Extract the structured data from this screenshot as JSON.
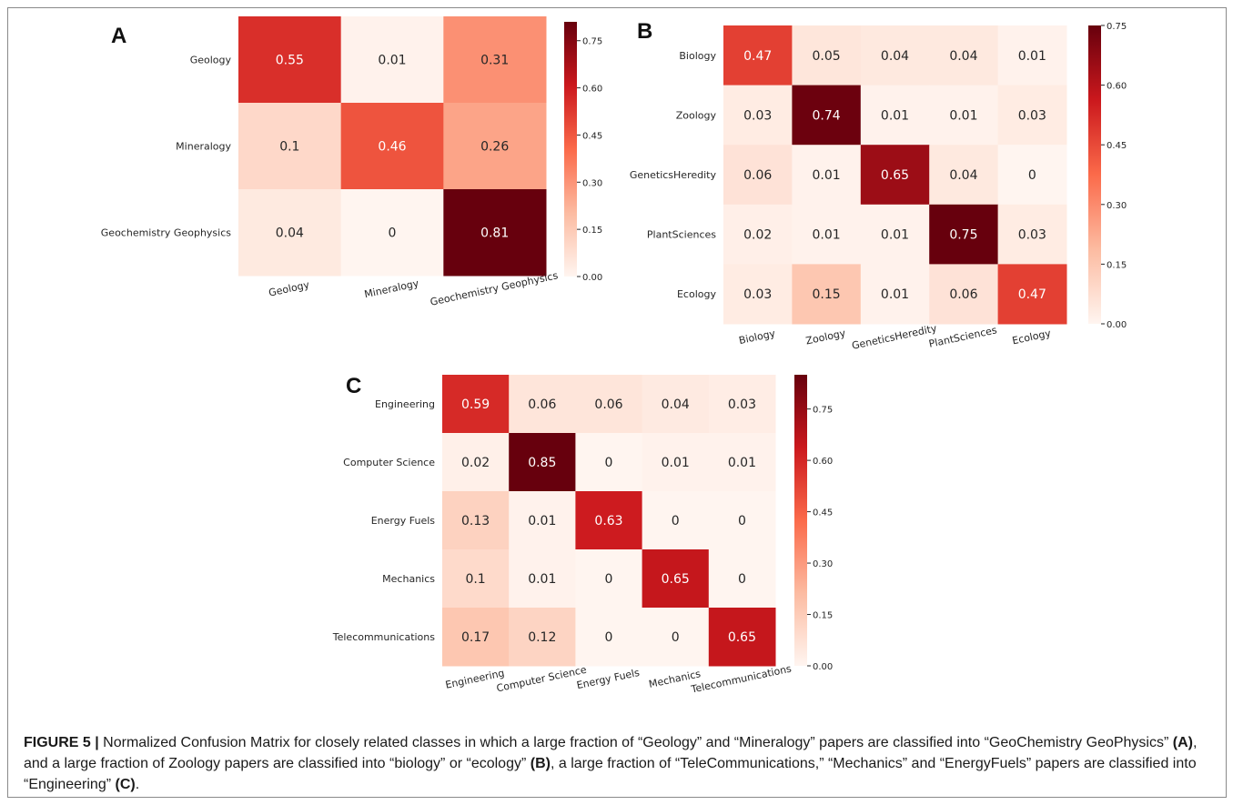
{
  "chart_data": [
    {
      "type": "heatmap",
      "panel_label": "A",
      "row_labels": [
        "Geology",
        "Mineralogy",
        "Geochemistry Geophysics"
      ],
      "col_labels": [
        "Geology",
        "Mineralogy",
        "Geochemistry Geophysics"
      ],
      "values": [
        [
          0.55,
          0.01,
          0.31
        ],
        [
          0.1,
          0.46,
          0.26
        ],
        [
          0.04,
          0,
          0.81
        ]
      ],
      "value_labels": [
        [
          "0.55",
          "0.01",
          "0.31"
        ],
        [
          "0.1",
          "0.46",
          "0.26"
        ],
        [
          "0.04",
          "0",
          "0.81"
        ]
      ],
      "colorbar": {
        "min": 0.0,
        "max": 0.81,
        "ticks": [
          "0.00",
          "0.15",
          "0.30",
          "0.45",
          "0.60",
          "0.75"
        ]
      },
      "colormap": [
        "#fff5f0",
        "#fcbba1",
        "#fb6a4a",
        "#cb181d",
        "#67000d"
      ]
    },
    {
      "type": "heatmap",
      "panel_label": "B",
      "row_labels": [
        "Biology",
        "Zoology",
        "GeneticsHeredity",
        "PlantSciences",
        "Ecology"
      ],
      "col_labels": [
        "Biology",
        "Zoology",
        "GeneticsHeredity",
        "PlantSciences",
        "Ecology"
      ],
      "values": [
        [
          0.47,
          0.05,
          0.04,
          0.04,
          0.01
        ],
        [
          0.03,
          0.74,
          0.01,
          0.01,
          0.03
        ],
        [
          0.06,
          0.01,
          0.65,
          0.04,
          0
        ],
        [
          0.02,
          0.01,
          0.01,
          0.75,
          0.03
        ],
        [
          0.03,
          0.15,
          0.01,
          0.06,
          0.47
        ]
      ],
      "value_labels": [
        [
          "0.47",
          "0.05",
          "0.04",
          "0.04",
          "0.01"
        ],
        [
          "0.03",
          "0.74",
          "0.01",
          "0.01",
          "0.03"
        ],
        [
          "0.06",
          "0.01",
          "0.65",
          "0.04",
          "0"
        ],
        [
          "0.02",
          "0.01",
          "0.01",
          "0.75",
          "0.03"
        ],
        [
          "0.03",
          "0.15",
          "0.01",
          "0.06",
          "0.47"
        ]
      ],
      "colorbar": {
        "min": 0.0,
        "max": 0.75,
        "ticks": [
          "0.00",
          "0.15",
          "0.30",
          "0.45",
          "0.60",
          "0.75"
        ]
      },
      "colormap": [
        "#fff5f0",
        "#fcbba1",
        "#fb6a4a",
        "#cb181d",
        "#67000d"
      ]
    },
    {
      "type": "heatmap",
      "panel_label": "C",
      "row_labels": [
        "Engineering",
        "Computer Science",
        "Energy Fuels",
        "Mechanics",
        "Telecommunications"
      ],
      "col_labels": [
        "Engineering",
        "Computer Science",
        "Energy Fuels",
        "Mechanics",
        "Telecommunications"
      ],
      "values": [
        [
          0.59,
          0.06,
          0.06,
          0.04,
          0.03
        ],
        [
          0.02,
          0.85,
          0,
          0.01,
          0.01
        ],
        [
          0.13,
          0.01,
          0.63,
          0,
          0
        ],
        [
          0.1,
          0.01,
          0,
          0.65,
          0
        ],
        [
          0.17,
          0.12,
          0,
          0,
          0.65
        ]
      ],
      "value_labels": [
        [
          "0.59",
          "0.06",
          "0.06",
          "0.04",
          "0.03"
        ],
        [
          "0.02",
          "0.85",
          "0",
          "0.01",
          "0.01"
        ],
        [
          "0.13",
          "0.01",
          "0.63",
          "0",
          "0"
        ],
        [
          "0.1",
          "0.01",
          "0",
          "0.65",
          "0"
        ],
        [
          "0.17",
          "0.12",
          "0",
          "0",
          "0.65"
        ]
      ],
      "colorbar": {
        "min": 0.0,
        "max": 0.85,
        "ticks": [
          "0.00",
          "0.15",
          "0.30",
          "0.45",
          "0.60",
          "0.75"
        ]
      },
      "colormap": [
        "#fff5f0",
        "#fcbba1",
        "#fb6a4a",
        "#cb181d",
        "#67000d"
      ]
    }
  ],
  "caption": {
    "figure_label": "FIGURE 5 |",
    "text_1": " Normalized Confusion Matrix for closely related classes in which a large fraction of “Geology” and “Mineralogy” papers are classified into “GeoChemistry GeoPhysics” ",
    "ref_a": "(A)",
    "text_2": ", and a large fraction of Zoology papers are classified into “biology” or “ecology” ",
    "ref_b": "(B)",
    "text_3": ", a large fraction of “TeleCommunications,” “Mechanics” and “EnergyFuels” papers are classified into “Engineering” ",
    "ref_c": "(C)",
    "text_4": "."
  }
}
